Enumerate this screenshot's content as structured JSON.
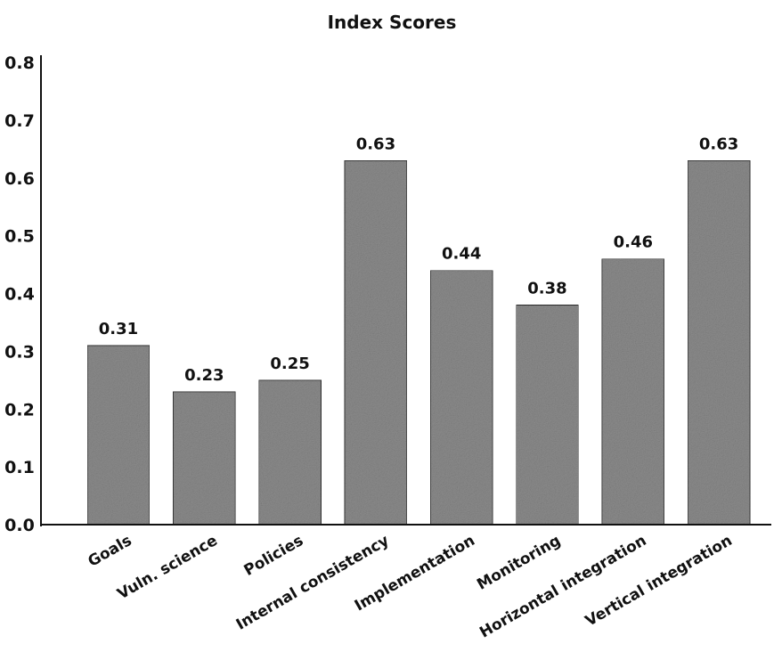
{
  "chart_data": {
    "type": "bar",
    "title": "Index Scores",
    "xlabel": "",
    "ylabel": "",
    "categories": [
      "Goals",
      "Vuln. science",
      "Policies",
      "Internal consistency",
      "Implementation",
      "Monitoring",
      "Horizontal integration",
      "Vertical integration"
    ],
    "values": [
      0.31,
      0.23,
      0.25,
      0.63,
      0.44,
      0.38,
      0.46,
      0.63
    ],
    "value_labels": [
      "0.31",
      "0.23",
      "0.25",
      "0.63",
      "0.44",
      "0.38",
      "0.46",
      "0.63"
    ],
    "ylim": [
      0,
      0.8
    ],
    "yticks": [
      "0.0",
      "0.1",
      "0.2",
      "0.3",
      "0.4",
      "0.5",
      "0.6",
      "0.7",
      "0.8"
    ],
    "grid": false,
    "legend": "none",
    "bar_color": "#8c8c8c"
  }
}
